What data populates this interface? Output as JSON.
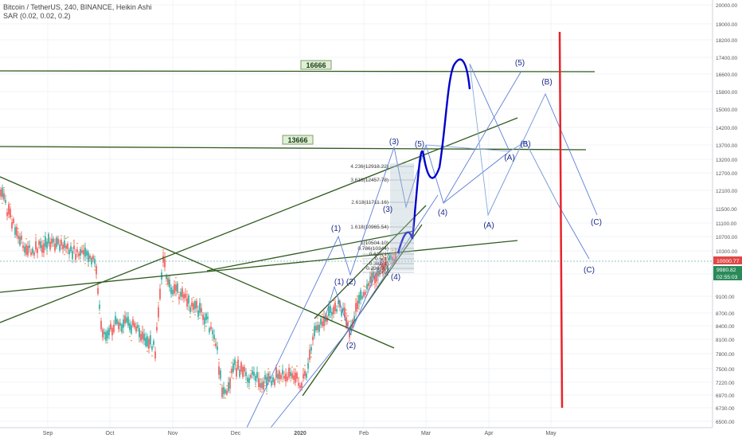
{
  "header": {
    "symbol_line": "Bitcoin / TetherUS, 240, BINANCE, Heikin Ashi",
    "indicator_line": "SAR (0.02, 0.02, 0.2)"
  },
  "chart_data": {
    "type": "line",
    "x_tick_labels": [
      "Sep",
      "Oct",
      "Nov",
      "Dec",
      "2020",
      "Feb",
      "Mar",
      "Apr",
      "May"
    ],
    "y_tick_labels": [
      "20000.00",
      "19000.00",
      "18200.00",
      "17400.00",
      "16600.00",
      "15800.00",
      "15000.00",
      "14200.00",
      "13700.00",
      "13200.00",
      "12700.00",
      "12100.00",
      "11500.00",
      "11100.00",
      "10700.00",
      "10300.00",
      "9600.00",
      "9100.00",
      "8700.00",
      "8400.00",
      "8100.00",
      "7800.00",
      "7500.00",
      "7220.00",
      "6970.00",
      "6730.00",
      "6500.00"
    ],
    "price_labels": {
      "current": "10000.77",
      "second": "9980.82",
      "countdown": "02:55:03"
    },
    "horizontal_levels": [
      "16666",
      "13666"
    ],
    "fib_labels": [
      "4.236(12918.22)",
      "3.618(12457.78)",
      "2.618(11711.16)",
      "1.618(10965.54)",
      "1(10504.10)",
      "0.786(10344)",
      "0.618(1)",
      "0.5(1)",
      "0.382(1)",
      "0.236(99)",
      "0(9)"
    ],
    "wave_labels": [
      "(1)",
      "(2)",
      "(3)",
      "(4)",
      "(5)",
      "(1)",
      "(2)",
      "(3)",
      "(4)",
      "(5)",
      "(A)",
      "(B)",
      "(C)",
      "(A)",
      "(B)",
      "(C)",
      "(4)",
      "(5)"
    ],
    "candle_colors": {
      "up": "#26a69a",
      "down": "#ef5350",
      "sar": "#ff7f0e"
    },
    "drawing_colors": {
      "trend": "#2e5a1c",
      "wave": "#0000cc",
      "projection": "#5f7fd6",
      "projection_light": "#88aadd",
      "vertical": "#e8232a",
      "level_label_bg": "#e0f0d8",
      "level_label_border": "#6a8a4a"
    }
  }
}
